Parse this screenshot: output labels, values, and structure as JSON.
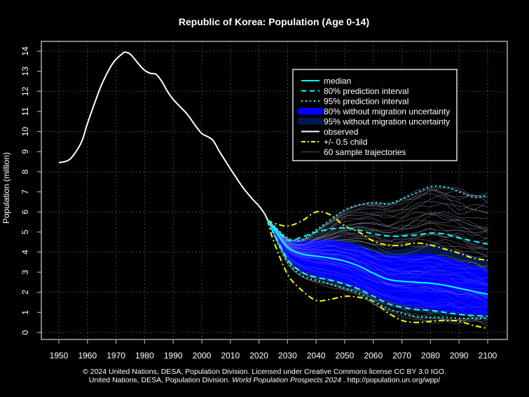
{
  "chart_data": {
    "type": "line",
    "title": "Republic of Korea: Population (Age 0-14)",
    "xlabel": "",
    "ylabel": "Population (million)",
    "xlim": [
      1946,
      2106
    ],
    "ylim": [
      -0.35,
      14.5
    ],
    "x_ticks": [
      1950,
      1960,
      1970,
      1980,
      1990,
      2000,
      2010,
      2020,
      2030,
      2040,
      2050,
      2060,
      2070,
      2080,
      2090,
      2100
    ],
    "y_ticks": [
      0,
      1,
      2,
      3,
      4,
      5,
      6,
      7,
      8,
      9,
      10,
      11,
      12,
      13,
      14
    ],
    "grid": true,
    "legend_position": "top-right",
    "legend": [
      {
        "label": "median",
        "style": "solid",
        "color": "#00ffff"
      },
      {
        "label": "80% prediction interval",
        "style": "dashed",
        "color": "#00ffff"
      },
      {
        "label": "95% prediction interval",
        "style": "dotted",
        "color": "#00ffff"
      },
      {
        "label": "80% without migration uncertainty",
        "style": "fill",
        "color": "#0000ff"
      },
      {
        "label": "95% without migration uncertainty",
        "style": "fill",
        "color": "#001a4d"
      },
      {
        "label": "observed",
        "style": "solid",
        "color": "#ffffff"
      },
      {
        "label": "+/- 0.5 child",
        "style": "dashdot",
        "color": "#ffff00"
      },
      {
        "label": "60 sample trajectories",
        "style": "solid",
        "color": "#333333"
      }
    ],
    "observed": {
      "x": [
        1950,
        1953,
        1955,
        1958,
        1960,
        1963,
        1965,
        1968,
        1970,
        1972,
        1973,
        1975,
        1978,
        1980,
        1982,
        1984,
        1986,
        1988,
        1990,
        1993,
        1995,
        1998,
        2000,
        2002,
        2004,
        2006,
        2008,
        2010,
        2013,
        2015,
        2018,
        2020,
        2022,
        2023
      ],
      "y": [
        8.45,
        8.55,
        8.8,
        9.5,
        10.4,
        11.6,
        12.35,
        13.2,
        13.6,
        13.85,
        13.95,
        13.85,
        13.35,
        13.05,
        12.9,
        12.85,
        12.5,
        12.0,
        11.6,
        11.15,
        10.85,
        10.25,
        9.9,
        9.75,
        9.55,
        9.05,
        8.6,
        8.15,
        7.5,
        7.1,
        6.6,
        6.3,
        5.9,
        5.6
      ]
    },
    "projection_years": [
      2023,
      2025,
      2030,
      2035,
      2040,
      2045,
      2050,
      2055,
      2060,
      2065,
      2070,
      2075,
      2080,
      2085,
      2090,
      2095,
      2100
    ],
    "median": [
      5.6,
      5.2,
      4.25,
      3.9,
      3.8,
      3.7,
      3.55,
      3.3,
      2.95,
      2.65,
      2.55,
      2.5,
      2.45,
      2.35,
      2.2,
      2.05,
      1.9
    ],
    "pi80_upper": [
      5.6,
      5.3,
      4.6,
      4.75,
      5.0,
      5.15,
      5.2,
      5.1,
      4.9,
      4.8,
      4.8,
      4.85,
      4.95,
      4.9,
      4.7,
      4.55,
      4.4
    ],
    "pi80_lower": [
      5.6,
      5.0,
      3.65,
      3.0,
      2.75,
      2.6,
      2.4,
      2.15,
      1.8,
      1.45,
      1.25,
      1.15,
      1.1,
      1.0,
      0.9,
      0.85,
      0.8
    ],
    "pi95_upper": [
      5.6,
      5.35,
      4.7,
      4.6,
      5.1,
      5.6,
      6.1,
      6.35,
      6.45,
      6.4,
      6.65,
      6.95,
      7.25,
      7.25,
      7.0,
      6.75,
      6.8
    ],
    "pi95_lower": [
      5.6,
      4.95,
      3.5,
      2.85,
      2.6,
      2.4,
      2.2,
      1.95,
      1.55,
      1.2,
      0.95,
      0.8,
      0.75,
      0.75,
      0.7,
      0.7,
      0.7
    ],
    "nomig80_upper": [
      5.6,
      5.25,
      4.55,
      4.55,
      4.6,
      4.6,
      4.5,
      4.3,
      4.0,
      3.85,
      3.85,
      3.9,
      3.9,
      3.75,
      3.55,
      3.35,
      3.15
    ],
    "nomig80_lower": [
      5.6,
      5.0,
      3.7,
      3.05,
      2.8,
      2.65,
      2.45,
      2.2,
      1.85,
      1.55,
      1.35,
      1.25,
      1.15,
      1.05,
      0.95,
      0.9,
      0.85
    ],
    "nomig95_upper": [
      5.6,
      5.3,
      4.6,
      4.7,
      4.75,
      4.75,
      4.65,
      4.45,
      4.2,
      4.1,
      4.15,
      4.25,
      4.3,
      4.2,
      4.0,
      3.8,
      3.6
    ],
    "nomig95_lower": [
      5.6,
      4.95,
      3.55,
      2.9,
      2.65,
      2.45,
      2.25,
      2.0,
      1.6,
      1.3,
      1.1,
      1.0,
      0.95,
      0.9,
      0.85,
      0.8,
      0.75
    ],
    "half_child_upper": [
      5.6,
      5.45,
      5.3,
      5.55,
      6.0,
      5.85,
      5.3,
      5.0,
      4.55,
      4.35,
      4.35,
      4.45,
      4.35,
      4.15,
      3.95,
      3.7,
      3.6
    ],
    "half_child_lower": [
      5.6,
      4.6,
      2.9,
      2.1,
      1.6,
      1.65,
      1.8,
      1.75,
      1.55,
      1.0,
      0.6,
      0.5,
      0.55,
      0.6,
      0.55,
      0.35,
      0.2
    ],
    "sample_trajectories_count": 60
  },
  "footer": {
    "line1": "© 2024 United Nations, DESA, Population Division. Licensed under Creative Commons license CC BY 3.0 IGO.",
    "line2_prefix": "United Nations, DESA, Population Division. ",
    "line2_italic": "World Population Prospects 2024",
    "line2_suffix": " . http://population.un.org/wpp/"
  }
}
